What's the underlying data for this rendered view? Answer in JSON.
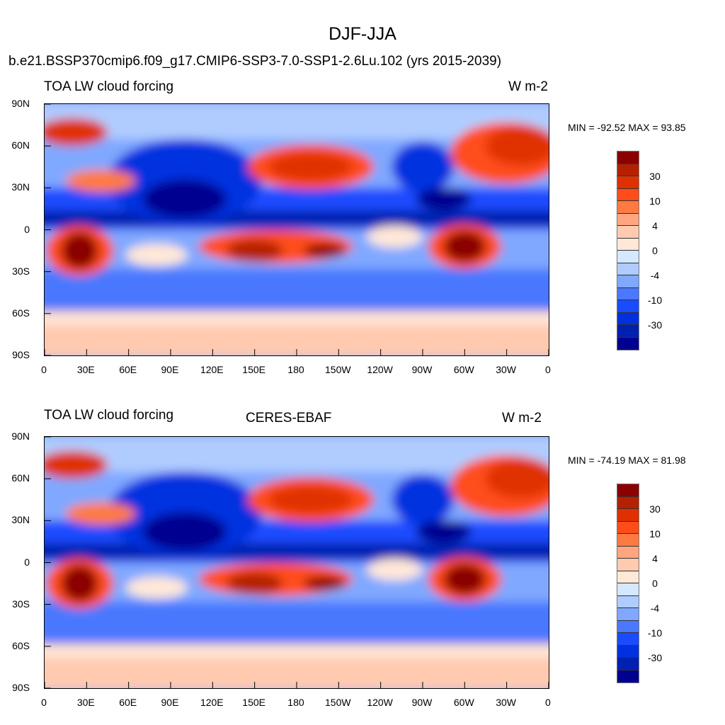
{
  "title": "DJF-JJA",
  "panels": [
    {
      "left_title": "TOA LW cloud forcing",
      "center_title": "b.e21.BSSP370cmip6.f09_g17.CMIP6-SSP3-7.0-SSP1-2.6Lu.102 (yrs 2015-2039)",
      "right_title": "W m-2",
      "minmax": "MIN = -92.52 MAX =  93.85"
    },
    {
      "left_title": "TOA LW cloud forcing",
      "center_title": "CERES-EBAF",
      "right_title": "W m-2",
      "minmax": "MIN = -74.19 MAX =  81.98"
    }
  ],
  "lat_labels": [
    "90N",
    "60N",
    "30N",
    "0",
    "30S",
    "60S",
    "90S"
  ],
  "lon_labels": [
    "0",
    "30E",
    "60E",
    "90E",
    "120E",
    "150E",
    "180",
    "150W",
    "120W",
    "90W",
    "60W",
    "30W",
    "0"
  ],
  "colorbar": {
    "labels": [
      "30",
      "10",
      "4",
      "0",
      "-4",
      "-10",
      "-30"
    ],
    "colors": [
      "#8b0000",
      "#b52000",
      "#e03000",
      "#ff4d1a",
      "#ff7a40",
      "#ffa680",
      "#ffcab0",
      "#ffe8d8",
      "#d4e8ff",
      "#b0ccff",
      "#80a8ff",
      "#4a78ff",
      "#1a4cff",
      "#0030e0",
      "#0020b0",
      "#000090"
    ]
  }
}
